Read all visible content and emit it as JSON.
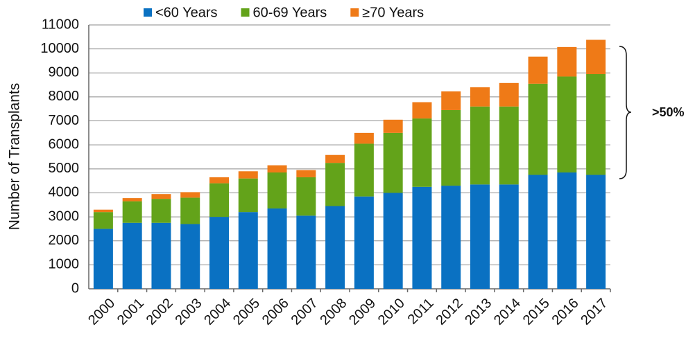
{
  "chart_data": {
    "type": "stacked_bar",
    "y_label": "Number of Transplants",
    "categories": [
      "2000",
      "2001",
      "2002",
      "2003",
      "2004",
      "2005",
      "2006",
      "2007",
      "2008",
      "2009",
      "2010",
      "2011",
      "2012",
      "2013",
      "2014",
      "2015",
      "2016",
      "2017"
    ],
    "series": [
      {
        "name": "<60 Years",
        "color": "#0a71c2",
        "values": [
          2500,
          2750,
          2750,
          2700,
          3000,
          3200,
          3350,
          3050,
          3450,
          3850,
          4000,
          4250,
          4300,
          4350,
          4350,
          4750,
          4850,
          4750
        ]
      },
      {
        "name": "60-69 Years",
        "color": "#63a31a",
        "values": [
          700,
          900,
          1000,
          1100,
          1400,
          1400,
          1500,
          1600,
          1800,
          2200,
          2500,
          2850,
          3150,
          3250,
          3250,
          3800,
          4000,
          4200
        ]
      },
      {
        "name": "≥70 Years",
        "color": "#ef7a17",
        "values": [
          100,
          130,
          200,
          230,
          250,
          300,
          300,
          300,
          330,
          450,
          550,
          680,
          780,
          800,
          980,
          1130,
          1230,
          1430
        ]
      }
    ],
    "ylim": [
      0,
      11000
    ],
    "yticks": [
      0,
      1000,
      2000,
      3000,
      4000,
      5000,
      6000,
      7000,
      8000,
      9000,
      10000,
      11000
    ],
    "grid": true,
    "annotations": [
      ">50%"
    ]
  }
}
